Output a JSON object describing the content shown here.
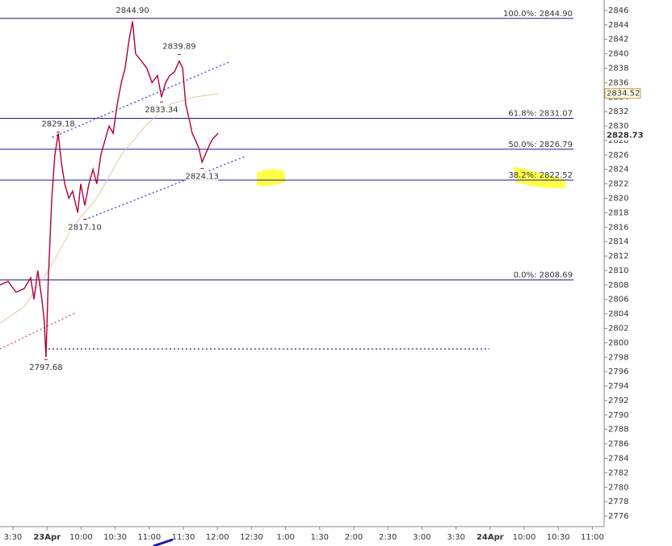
{
  "chart_data": {
    "type": "line",
    "ylim": [
      2774.55,
      2847.45
    ],
    "yticks": [
      2776,
      2778,
      2780,
      2782,
      2784,
      2786,
      2788,
      2790,
      2792,
      2794,
      2796,
      2798,
      2800,
      2802,
      2804,
      2806,
      2808,
      2810,
      2812,
      2814,
      2816,
      2818,
      2820,
      2822,
      2824,
      2826,
      2828,
      2830,
      2832,
      2834,
      2836,
      2838,
      2840,
      2842,
      2844,
      2846
    ],
    "xlim": [
      -0.379,
      17.346
    ],
    "xticks": [
      {
        "value": 0,
        "label": "3:30"
      },
      {
        "value": 1,
        "label": "23Apr"
      },
      {
        "value": 2,
        "label": "10:00"
      },
      {
        "value": 3,
        "label": "10:30"
      },
      {
        "value": 4,
        "label": "11:00"
      },
      {
        "value": 5,
        "label": "11:30"
      },
      {
        "value": 6,
        "label": "12:00"
      },
      {
        "value": 7,
        "label": "12:30"
      },
      {
        "value": 8,
        "label": "1:00"
      },
      {
        "value": 9,
        "label": "1:30"
      },
      {
        "value": 10,
        "label": "2:00"
      },
      {
        "value": 11,
        "label": "2:30"
      },
      {
        "value": 12,
        "label": "3:00"
      },
      {
        "value": 13,
        "label": "3:30"
      },
      {
        "value": 14,
        "label": "24Apr"
      },
      {
        "value": 15,
        "label": "10:00"
      },
      {
        "value": 16,
        "label": "10:30"
      },
      {
        "value": 17,
        "label": "11:00"
      }
    ],
    "series": [
      {
        "color": "#b0003a",
        "x": [
          -0.38,
          -0.14,
          0.09,
          0.33,
          0.52,
          0.62,
          0.73,
          0.85,
          0.92,
          0.97,
          1.04,
          1.14,
          1.23,
          1.33,
          1.42,
          1.52,
          1.64,
          1.75,
          1.9,
          1.99,
          2.11,
          2.23,
          2.35,
          2.46,
          2.58,
          2.7,
          2.82,
          2.94,
          3.06,
          3.18,
          3.29,
          3.41,
          3.51,
          3.6,
          3.77,
          3.93,
          4.08,
          4.24,
          4.36,
          4.48,
          4.6,
          4.74,
          4.88,
          4.98,
          5.07,
          5.17,
          5.26,
          5.36,
          5.45,
          5.55,
          5.64,
          5.73,
          5.83,
          5.92,
          6.02
        ],
        "values": [
          2808,
          2808.5,
          2807,
          2807.5,
          2809,
          2806,
          2810,
          2806,
          2803,
          2798,
          2809,
          2820,
          2826,
          2829,
          2825,
          2822,
          2820,
          2821,
          2818,
          2822,
          2819,
          2822,
          2824,
          2822,
          2826,
          2828,
          2830,
          2829,
          2833,
          2836,
          2838,
          2842,
          2844.5,
          2840,
          2839,
          2838,
          2836,
          2837,
          2834,
          2836,
          2837,
          2837.5,
          2839,
          2838,
          2833,
          2831,
          2829,
          2828,
          2827,
          2825,
          2826,
          2827,
          2828,
          2828.5,
          2829
        ]
      },
      {
        "color": "#e8c79a",
        "x": [
          -0.38,
          0.33,
          1.04,
          1.75,
          2.46,
          3.18,
          3.88,
          4.6,
          5.31,
          6.02
        ],
        "values": [
          2802.7,
          2805,
          2810,
          2816,
          2820,
          2826,
          2830,
          2833,
          2834,
          2834.5
        ]
      }
    ],
    "levels_color": "#1a1a9c",
    "levels": [
      {
        "label": "100.0%: 2844.90",
        "value": 2844.9
      },
      {
        "label": "61.8%: 2831.07",
        "value": 2831.07
      },
      {
        "label": "50.0%: 2826.79",
        "value": 2826.79
      },
      {
        "label": "38.2%: 2822.52",
        "value": 2822.52
      },
      {
        "label": "0.0%: 2808.69",
        "value": 2808.69
      }
    ],
    "trendlines": [
      {
        "color": "#3b3bdb",
        "x": [
          1.16,
          6.33
        ],
        "values": [
          2828.44,
          2838.84
        ]
      },
      {
        "color": "#3b3bdb",
        "x": [
          2.11,
          6.85
        ],
        "values": [
          2817.04,
          2825.87
        ]
      },
      {
        "color": "#e05050",
        "x": [
          -0.38,
          1.8
        ],
        "values": [
          2799.15,
          2804.07
        ]
      },
      {
        "color": "#1a1a9c",
        "x": [
          1.04,
          13.98
        ],
        "values": [
          2799.15,
          2799.15
        ]
      }
    ],
    "annotations": [
      {
        "label": "2844.90",
        "value": 2844.9,
        "x": 3.51,
        "placement": "above"
      },
      {
        "label": "2839.89",
        "value": 2839.89,
        "x": 4.88,
        "placement": "above"
      },
      {
        "label": "2833.34",
        "value": 2833.34,
        "x": 4.36,
        "placement": "below"
      },
      {
        "label": "2829.18",
        "value": 2829.18,
        "x": 1.33,
        "placement": "above"
      },
      {
        "label": "2824.13",
        "value": 2824.13,
        "x": 5.55,
        "placement": "below"
      },
      {
        "label": "2817.10",
        "value": 2817.1,
        "x": 2.11,
        "placement": "below"
      },
      {
        "label": "2797.68",
        "value": 2797.68,
        "x": 0.97,
        "placement": "below"
      }
    ],
    "tags": [
      {
        "value": 2834.52,
        "style": "box"
      },
      {
        "value": 2828.73,
        "style": "bold"
      }
    ]
  }
}
